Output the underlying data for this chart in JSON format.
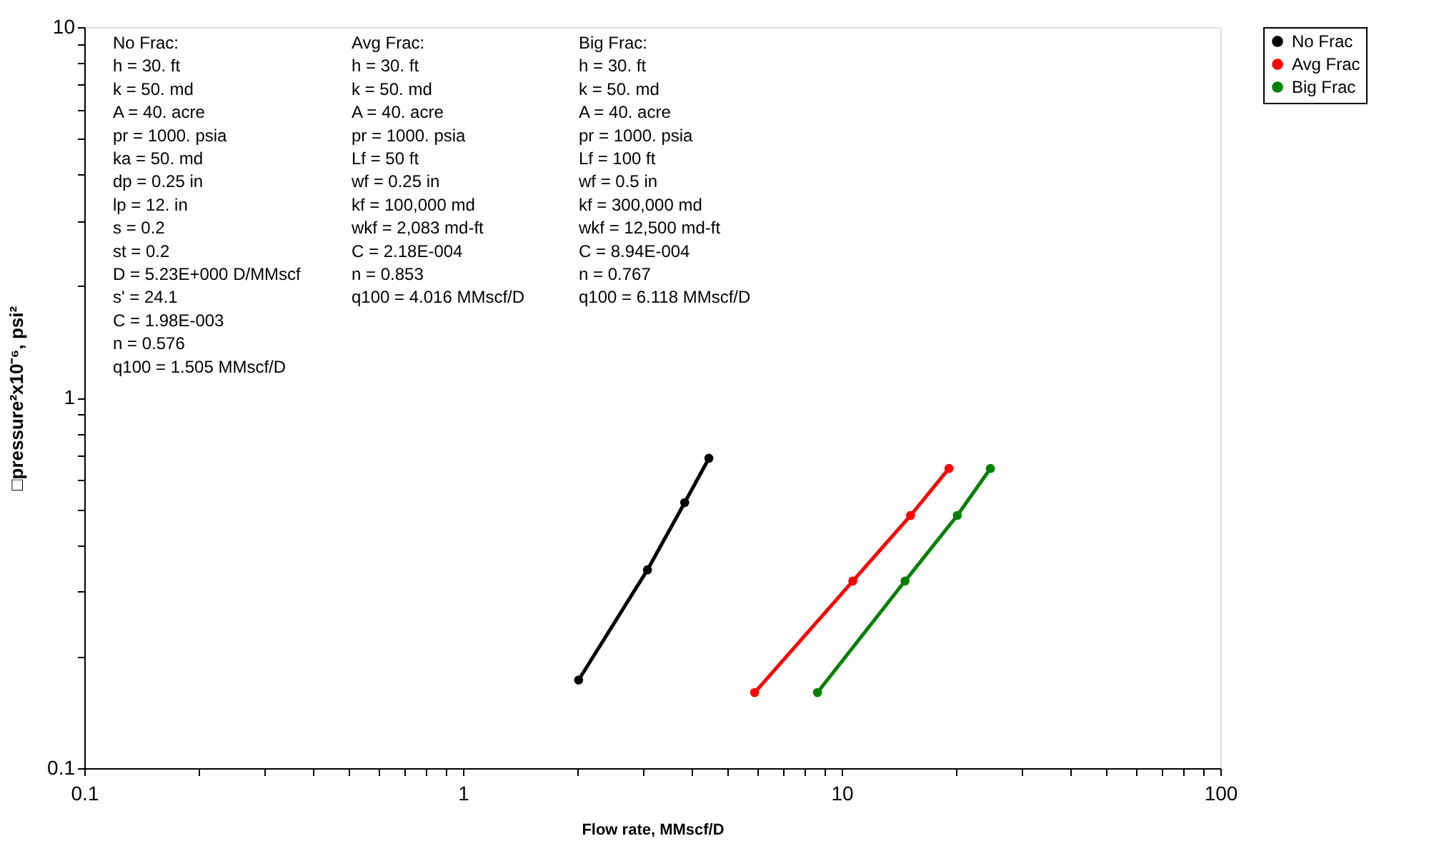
{
  "chart_data": {
    "type": "line",
    "xlabel": "Flow rate, MMscf/D",
    "ylabel": "□pressure²x10⁻⁶, psi²",
    "log": "xy",
    "grid": false,
    "legend": "right",
    "marker": "circle",
    "line_style": "solid",
    "xlim": [
      0.1,
      100
    ],
    "ylim": [
      0.1,
      10
    ],
    "xticks": [
      0.1,
      {
        "value": 0.2,
        "label": null
      },
      {
        "value": 0.3,
        "label": null
      },
      {
        "value": 0.4,
        "label": null
      },
      {
        "value": 0.5,
        "label": null
      },
      {
        "value": 0.6,
        "label": null
      },
      {
        "value": 0.7,
        "label": null
      },
      {
        "value": 0.8,
        "label": null
      },
      {
        "value": 0.9,
        "label": null
      },
      1,
      {
        "value": 2,
        "label": null
      },
      {
        "value": 3,
        "label": null
      },
      {
        "value": 4,
        "label": null
      },
      {
        "value": 5,
        "label": null
      },
      {
        "value": 6,
        "label": null
      },
      {
        "value": 7,
        "label": null
      },
      {
        "value": 8,
        "label": null
      },
      {
        "value": 9,
        "label": null
      },
      10,
      {
        "value": 20,
        "label": null
      },
      {
        "value": 30,
        "label": null
      },
      {
        "value": 40,
        "label": null
      },
      {
        "value": 50,
        "label": null
      },
      {
        "value": 60,
        "label": null
      },
      {
        "value": 70,
        "label": null
      },
      {
        "value": 80,
        "label": null
      },
      {
        "value": 90,
        "label": null
      },
      100
    ],
    "yticks": [
      0.1,
      {
        "value": 0.2,
        "label": null
      },
      {
        "value": 0.3,
        "label": null
      },
      {
        "value": 0.4,
        "label": null
      },
      {
        "value": 0.5,
        "label": null
      },
      {
        "value": 0.6,
        "label": null
      },
      {
        "value": 0.7,
        "label": null
      },
      {
        "value": 0.8,
        "label": null
      },
      {
        "value": 0.9,
        "label": null
      },
      1,
      {
        "value": 2,
        "label": null
      },
      {
        "value": 3,
        "label": null
      },
      {
        "value": 4,
        "label": null
      },
      {
        "value": 5,
        "label": null
      },
      {
        "value": 6,
        "label": null
      },
      {
        "value": 7,
        "label": null
      },
      {
        "value": 8,
        "label": null
      },
      {
        "value": 9,
        "label": null
      },
      10
    ],
    "series": [
      {
        "name": "No Frac",
        "color": "#000000",
        "x": [
          2.02,
          3.07,
          3.85,
          4.46
        ],
        "values": [
          0.173,
          0.343,
          0.521,
          0.686
        ]
      },
      {
        "name": "Avg Frac",
        "color": "#ff0000",
        "x": [
          5.89,
          10.7,
          15.2,
          19.2
        ],
        "values": [
          0.16,
          0.32,
          0.481,
          0.644
        ]
      },
      {
        "name": "Big Frac",
        "color": "#008000",
        "x": [
          8.63,
          14.7,
          20.2,
          24.7
        ],
        "values": [
          0.16,
          0.32,
          0.481,
          0.644
        ]
      }
    ],
    "annotations": [
      "No Frac:\nh = 30. ft\nk = 50. md\nA = 40. acre\npr = 1000. psia\nka = 50. md\ndp = 0.25 in\nlp = 12. in\ns = 0.2\nst = 0.2\nD = 5.23E+000 D/MMscf\ns' = 24.1\nC = 1.98E-003\nn = 0.576\nq100 = 1.505 MMscf/D",
      "Avg Frac:\nh = 30. ft\nk = 50. md\nA = 40. acre\npr = 1000. psia\nLf = 50 ft\nwf = 0.25 in\nkf = 100,000 md\nwkf = 2,083 md-ft\nC = 2.18E-004\nn = 0.853\nq100 = 4.016 MMscf/D",
      "Big Frac:\nh = 30. ft\nk = 50. md\nA = 40. acre\npr = 1000. psia\nLf = 100 ft\nwf = 0.5 in\nkf = 300,000 md\nwkf = 12,500 md-ft\nC = 8.94E-004\nn = 0.767\nq100 = 6.118 MMscf/D"
    ]
  }
}
